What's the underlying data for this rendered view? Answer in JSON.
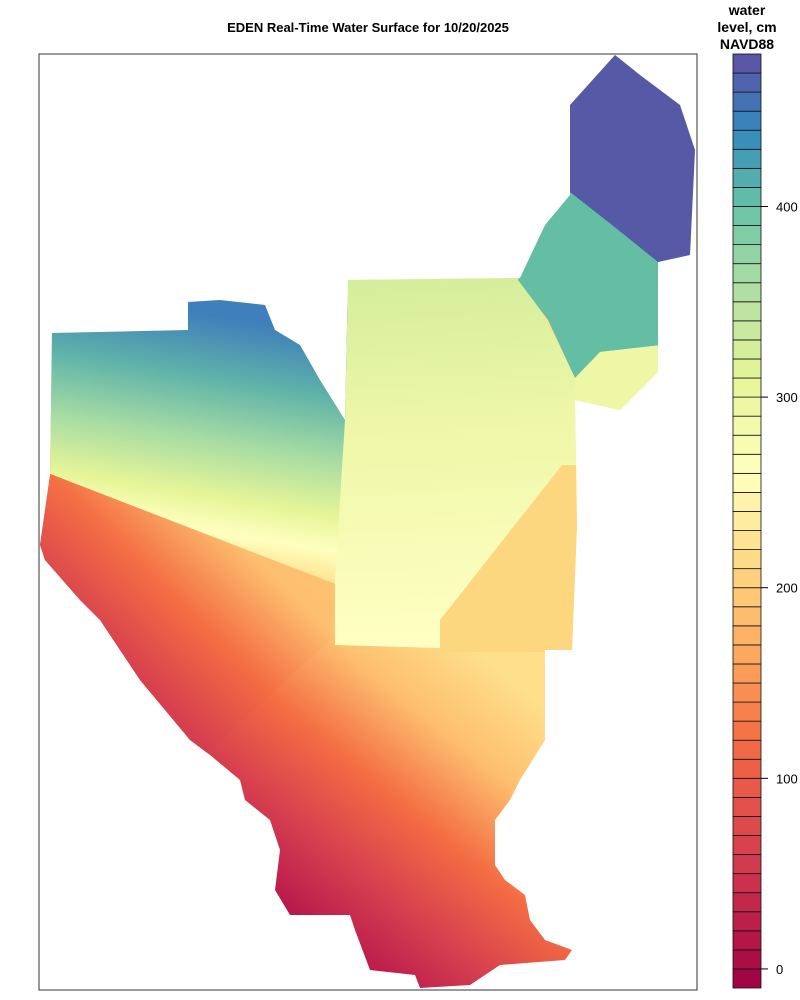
{
  "title": "EDEN Real-Time Water Surface for 10/20/2025",
  "legend": {
    "title_lines": [
      "water",
      "level, cm",
      "NAVD88"
    ],
    "ticks": [
      0,
      100,
      200,
      300,
      400
    ],
    "range": [
      -10,
      480
    ],
    "band_step": 10,
    "palette": [
      {
        "value": -10,
        "color": "#9e0142"
      },
      {
        "value": 60,
        "color": "#d53e4f"
      },
      {
        "value": 120,
        "color": "#f46d43"
      },
      {
        "value": 170,
        "color": "#fdae61"
      },
      {
        "value": 220,
        "color": "#fee08b"
      },
      {
        "value": 260,
        "color": "#ffffbf"
      },
      {
        "value": 310,
        "color": "#e6f598"
      },
      {
        "value": 360,
        "color": "#abdda4"
      },
      {
        "value": 400,
        "color": "#66c2a5"
      },
      {
        "value": 440,
        "color": "#3288bd"
      },
      {
        "value": 480,
        "color": "#5e4fa2"
      }
    ]
  }
}
